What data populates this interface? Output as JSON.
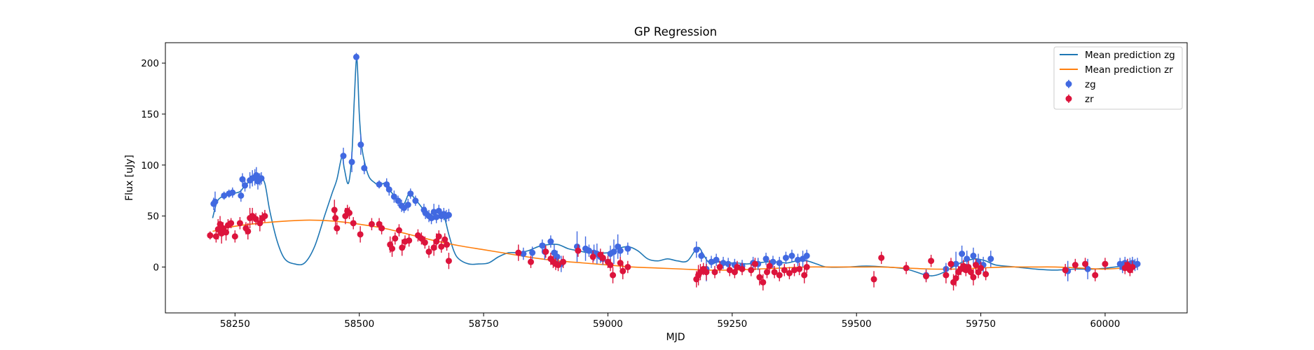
{
  "chart_data": {
    "type": "scatter",
    "title": "GP Regression",
    "xlabel": "MJD",
    "ylabel": "Flux [uJy]",
    "xlim": [
      58110,
      60165
    ],
    "ylim": [
      -45,
      220
    ],
    "xticks": [
      58250,
      58500,
      58750,
      59000,
      59250,
      59500,
      59750,
      60000
    ],
    "yticks": [
      0,
      50,
      100,
      150,
      200
    ],
    "legend_position": "top-right",
    "legend": [
      "Mean prediction zg",
      "Mean prediction zr",
      "zg",
      "zr"
    ],
    "colors": {
      "zg_line": "#1f77b4",
      "zr_line": "#ff7f0e",
      "zg_points": "#4169e1",
      "zr_points": "#dc143c"
    },
    "series": [
      {
        "name": "Mean prediction zg",
        "kind": "line",
        "x": [
          58205,
          58215,
          58230,
          58245,
          58260,
          58270,
          58280,
          58290,
          58300,
          58310,
          58320,
          58335,
          58350,
          58370,
          58390,
          58410,
          58430,
          58445,
          58455,
          58465,
          58470,
          58478,
          58485,
          58490,
          58495,
          58500,
          58505,
          58512,
          58520,
          58530,
          58540,
          58550,
          58560,
          58570,
          58580,
          58590,
          58600,
          58610,
          58620,
          58630,
          58640,
          58650,
          58660,
          58670,
          58680,
          58690,
          58700,
          58720,
          58740,
          58760,
          58780,
          58800,
          58820,
          58840,
          58860,
          58880,
          58900,
          58920,
          58940,
          58960,
          58980,
          59000,
          59020,
          59040,
          59060,
          59080,
          59100,
          59120,
          59140,
          59160,
          59180,
          59190,
          59200,
          59210,
          59220,
          59240,
          59260,
          59280,
          59300,
          59320,
          59340,
          59360,
          59380,
          59400,
          59420,
          59440,
          59480,
          59520,
          59560,
          59600,
          59640,
          59660,
          59680,
          59700,
          59720,
          59740,
          59760,
          59780,
          59820,
          59860,
          59900,
          59940,
          59980,
          60020,
          60050,
          60065
        ],
        "y": [
          48,
          65,
          70,
          72,
          74,
          80,
          84,
          86,
          88,
          82,
          55,
          25,
          8,
          3,
          4,
          20,
          50,
          72,
          86,
          108,
          96,
          82,
          110,
          165,
          205,
          150,
          118,
          100,
          88,
          83,
          80,
          82,
          76,
          70,
          64,
          62,
          72,
          68,
          62,
          56,
          52,
          50,
          50,
          50,
          32,
          16,
          8,
          3,
          3,
          4,
          10,
          14,
          14,
          16,
          20,
          22,
          22,
          18,
          16,
          14,
          14,
          14,
          18,
          20,
          16,
          8,
          6,
          8,
          6,
          6,
          19,
          14,
          6,
          3,
          5,
          4,
          4,
          3,
          4,
          5,
          5,
          4,
          6,
          6,
          3,
          0,
          0,
          1,
          0,
          -2,
          -8,
          -8,
          -4,
          2,
          6,
          8,
          6,
          2,
          0,
          -2,
          -3,
          -2,
          -2,
          0,
          2,
          2
        ]
      },
      {
        "name": "Mean prediction zr",
        "kind": "line",
        "x": [
          58205,
          58250,
          58300,
          58350,
          58400,
          58450,
          58500,
          58550,
          58600,
          58650,
          58700,
          58750,
          58800,
          58850,
          58900,
          58950,
          59000,
          59050,
          59100,
          59150,
          59200,
          59250,
          59300,
          59350,
          59400,
          59450,
          59500,
          59550,
          59600,
          59650,
          59700,
          59750,
          59800,
          59850,
          59900,
          59950,
          60000,
          60065
        ],
        "y": [
          35,
          40,
          43,
          45,
          46,
          45,
          42,
          38,
          32,
          26,
          21,
          17,
          13,
          9,
          6,
          4,
          2,
          0,
          -1,
          -2,
          -3,
          -3,
          -2,
          -1,
          0,
          0,
          0,
          0,
          -1,
          -2,
          -2,
          -1,
          0,
          0,
          0,
          -1,
          -2,
          0
        ]
      },
      {
        "name": "zg",
        "kind": "points",
        "x": [
          58207,
          58210,
          58228,
          58238,
          58245,
          58262,
          58265,
          58270,
          58280,
          58285,
          58290,
          58293,
          58296,
          58300,
          58303,
          58468,
          58485,
          58494,
          58503,
          58510,
          58540,
          58555,
          58560,
          58570,
          58578,
          58585,
          58590,
          58598,
          58603,
          58613,
          58630,
          58633,
          58640,
          58645,
          58650,
          58655,
          58660,
          58665,
          58670,
          58675,
          58680,
          58830,
          58848,
          58868,
          58873,
          58885,
          58892,
          58898,
          58906,
          58938,
          58955,
          58962,
          58972,
          58978,
          58985,
          58990,
          59005,
          59012,
          59020,
          59025,
          59040,
          59178,
          59188,
          59198,
          59208,
          59218,
          59232,
          59242,
          59255,
          59270,
          59292,
          59302,
          59318,
          59332,
          59345,
          59358,
          59370,
          59382,
          59392,
          59400,
          59640,
          59680,
          59700,
          59712,
          59722,
          59735,
          59745,
          59755,
          59770,
          59925,
          59965,
          60030,
          60035,
          60040,
          60045,
          60050,
          60055,
          60060,
          60065
        ],
        "y": [
          62,
          64,
          70,
          72,
          73,
          70,
          86,
          80,
          85,
          87,
          88,
          90,
          84,
          86,
          87,
          109,
          103,
          206,
          120,
          97,
          81,
          81,
          76,
          69,
          65,
          60,
          58,
          61,
          72,
          65,
          56,
          53,
          50,
          48,
          54,
          49,
          55,
          50,
          52,
          50,
          51,
          13,
          14,
          21,
          15,
          25,
          14,
          10,
          3,
          20,
          18,
          16,
          14,
          13,
          10,
          8,
          13,
          15,
          20,
          16,
          18,
          17,
          11,
          -2,
          5,
          7,
          4,
          3,
          2,
          1,
          4,
          3,
          8,
          5,
          4,
          9,
          11,
          7,
          8,
          11,
          -8,
          -2,
          3,
          13,
          8,
          11,
          5,
          2,
          8,
          -4,
          -2,
          3,
          0,
          4,
          2,
          3,
          4,
          2,
          3
        ],
        "yerr": [
          6,
          10,
          4,
          4,
          5,
          6,
          6,
          6,
          8,
          8,
          8,
          8,
          8,
          6,
          6,
          8,
          10,
          4,
          10,
          6,
          4,
          6,
          6,
          6,
          5,
          6,
          5,
          6,
          5,
          5,
          6,
          6,
          6,
          6,
          8,
          6,
          6,
          6,
          6,
          6,
          6,
          6,
          6,
          6,
          8,
          6,
          8,
          6,
          8,
          15,
          12,
          6,
          8,
          10,
          6,
          6,
          8,
          12,
          12,
          6,
          6,
          8,
          6,
          12,
          6,
          6,
          6,
          6,
          6,
          6,
          6,
          6,
          6,
          6,
          6,
          6,
          6,
          6,
          8,
          6,
          6,
          6,
          12,
          8,
          8,
          8,
          8,
          8,
          8,
          10,
          10,
          6,
          6,
          6,
          6,
          6,
          6,
          6,
          6
        ]
      },
      {
        "name": "zr",
        "kind": "points",
        "x": [
          58200,
          58212,
          58216,
          58220,
          58223,
          58226,
          58232,
          58236,
          58242,
          58250,
          58260,
          58272,
          58276,
          58280,
          58285,
          58292,
          58300,
          58305,
          58310,
          58450,
          58452,
          58455,
          58472,
          58476,
          58480,
          58488,
          58502,
          58525,
          58540,
          58545,
          58562,
          58566,
          58572,
          58580,
          58586,
          58592,
          58600,
          58618,
          58625,
          58632,
          58640,
          58650,
          58655,
          58660,
          58665,
          58672,
          58676,
          58680,
          58820,
          58845,
          58875,
          58885,
          58890,
          58895,
          58900,
          58910,
          58940,
          58970,
          58985,
          58990,
          59000,
          59005,
          59010,
          59025,
          59030,
          59040,
          59178,
          59182,
          59186,
          59192,
          59198,
          59215,
          59225,
          59245,
          59255,
          59260,
          59270,
          59288,
          59296,
          59305,
          59312,
          59320,
          59325,
          59335,
          59345,
          59355,
          59365,
          59375,
          59385,
          59395,
          59400,
          59535,
          59550,
          59600,
          59640,
          59650,
          59680,
          59690,
          59695,
          59700,
          59705,
          59710,
          59715,
          59720,
          59725,
          59730,
          59735,
          59740,
          59745,
          59750,
          59760,
          59920,
          59940,
          59960,
          59980,
          60000,
          60040,
          60045,
          60050,
          60055
        ],
        "y": [
          31,
          30,
          37,
          42,
          33,
          38,
          34,
          41,
          43,
          30,
          43,
          38,
          35,
          48,
          50,
          47,
          43,
          48,
          50,
          56,
          48,
          38,
          50,
          55,
          53,
          43,
          32,
          42,
          42,
          38,
          22,
          18,
          28,
          36,
          19,
          25,
          26,
          31,
          28,
          24,
          15,
          19,
          25,
          30,
          20,
          27,
          22,
          6,
          14,
          5,
          15,
          8,
          5,
          3,
          2,
          5,
          16,
          10,
          12,
          9,
          5,
          2,
          -8,
          4,
          -4,
          0,
          -12,
          -8,
          -5,
          -2,
          -5,
          -5,
          0,
          -3,
          -5,
          0,
          -2,
          -3,
          3,
          -10,
          -15,
          -5,
          1,
          -5,
          -8,
          -3,
          -6,
          -3,
          -2,
          -8,
          0,
          -12,
          9,
          -1,
          -9,
          6,
          -8,
          3,
          -15,
          -11,
          -5,
          -2,
          1,
          -3,
          0,
          -5,
          -10,
          2,
          -5,
          -1,
          -7,
          -3,
          2,
          3,
          -8,
          3,
          -1,
          2,
          -3,
          0
        ],
        "yerr": [
          4,
          6,
          10,
          8,
          10,
          6,
          8,
          6,
          5,
          6,
          6,
          6,
          8,
          10,
          8,
          6,
          8,
          6,
          6,
          10,
          8,
          6,
          8,
          6,
          6,
          6,
          8,
          6,
          6,
          6,
          8,
          8,
          6,
          6,
          8,
          6,
          6,
          6,
          6,
          6,
          6,
          8,
          8,
          6,
          6,
          6,
          6,
          8,
          8,
          6,
          6,
          6,
          6,
          6,
          6,
          6,
          6,
          6,
          6,
          6,
          6,
          6,
          8,
          6,
          8,
          6,
          8,
          10,
          8,
          6,
          8,
          6,
          6,
          6,
          6,
          6,
          6,
          6,
          6,
          8,
          8,
          6,
          6,
          6,
          6,
          6,
          6,
          6,
          6,
          8,
          6,
          8,
          6,
          6,
          6,
          6,
          8,
          6,
          8,
          8,
          6,
          6,
          6,
          6,
          6,
          6,
          8,
          6,
          6,
          6,
          6,
          6,
          6,
          6,
          6,
          6,
          6,
          6,
          6,
          6
        ]
      }
    ]
  }
}
